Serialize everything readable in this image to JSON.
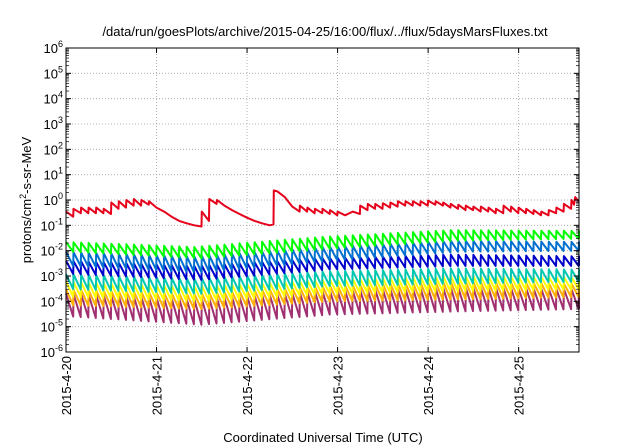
{
  "chart_data": {
    "type": "line",
    "title": "/data/run/goesPlots/archive/2015-04-25/16:00/flux/../flux/5daysMarsFluxes.txt",
    "xlabel": "Coordinated Universal Time (UTC)",
    "ylabel": {
      "prefix": "protons/cm",
      "superscript": "2",
      "suffix": "-s-sr-MeV"
    },
    "y_scale": "log",
    "ylim_exponents": [
      -6,
      6
    ],
    "y_tick_labels": [
      {
        "base": "10",
        "exp": "-6"
      },
      {
        "base": "10",
        "exp": "-5"
      },
      {
        "base": "10",
        "exp": "-4"
      },
      {
        "base": "10",
        "exp": "-3"
      },
      {
        "base": "10",
        "exp": "-2"
      },
      {
        "base": "10",
        "exp": "-1"
      },
      {
        "base": "10",
        "exp": "0"
      },
      {
        "base": "10",
        "exp": "1"
      },
      {
        "base": "10",
        "exp": "2"
      },
      {
        "base": "10",
        "exp": "3"
      },
      {
        "base": "10",
        "exp": "4"
      },
      {
        "base": "10",
        "exp": "5"
      },
      {
        "base": "10",
        "exp": "6"
      }
    ],
    "xlim": [
      "2015-04-20 00:00",
      "2015-04-25 16:00"
    ],
    "x_tick_labels": [
      "2015-4-20",
      "2015-4-21",
      "2015-4-22",
      "2015-4-23",
      "2015-4-24",
      "2015-4-25"
    ],
    "x_tick_dates": [
      "2015-04-20",
      "2015-04-21",
      "2015-04-22",
      "2015-04-23",
      "2015-04-24",
      "2015-04-25"
    ],
    "grid": true,
    "legend": "none",
    "series_colors": [
      "#e6001a",
      "#00ff00",
      "#0070d0",
      "#0000cc",
      "#00c8b0",
      "#ffff00",
      "#ffb000",
      "#a03070"
    ],
    "series": [
      {
        "color": "#e6001a",
        "points": [
          [
            "2015-04-20 00:00",
            0.35
          ],
          [
            "2015-04-20 01:55",
            0.22
          ],
          [
            "2015-04-20 02:00",
            0.45
          ],
          [
            "2015-04-20 03:55",
            0.3
          ],
          [
            "2015-04-20 04:00",
            0.5
          ],
          [
            "2015-04-20 05:55",
            0.3
          ],
          [
            "2015-04-20 06:00",
            0.5
          ],
          [
            "2015-04-20 07:55",
            0.3
          ],
          [
            "2015-04-20 08:00",
            0.5
          ],
          [
            "2015-04-20 09:55",
            0.3
          ],
          [
            "2015-04-20 10:00",
            0.45
          ],
          [
            "2015-04-20 11:55",
            0.28
          ],
          [
            "2015-04-20 12:00",
            0.8
          ],
          [
            "2015-04-20 13:55",
            0.45
          ],
          [
            "2015-04-20 14:00",
            0.9
          ],
          [
            "2015-04-20 15:55",
            0.5
          ],
          [
            "2015-04-20 16:00",
            1.0
          ],
          [
            "2015-04-20 17:55",
            0.6
          ],
          [
            "2015-04-20 18:00",
            1.1
          ],
          [
            "2015-04-20 19:55",
            0.6
          ],
          [
            "2015-04-20 20:00",
            1.0
          ],
          [
            "2015-04-20 21:55",
            0.65
          ],
          [
            "2015-04-20 22:00",
            0.9
          ],
          [
            "2015-04-21 00:00",
            0.5
          ],
          [
            "2015-04-21 02:00",
            0.35
          ],
          [
            "2015-04-21 04:00",
            0.22
          ],
          [
            "2015-04-21 06:00",
            0.15
          ],
          [
            "2015-04-21 08:00",
            0.12
          ],
          [
            "2015-04-21 10:00",
            0.1
          ],
          [
            "2015-04-21 11:55",
            0.09
          ],
          [
            "2015-04-21 12:00",
            0.35
          ],
          [
            "2015-04-21 13:55",
            0.15
          ],
          [
            "2015-04-21 14:00",
            1.1
          ],
          [
            "2015-04-21 15:55",
            0.7
          ],
          [
            "2015-04-21 16:00",
            1.0
          ],
          [
            "2015-04-21 18:00",
            0.6
          ],
          [
            "2015-04-21 20:00",
            0.4
          ],
          [
            "2015-04-21 22:00",
            0.28
          ],
          [
            "2015-04-22 00:00",
            0.2
          ],
          [
            "2015-04-22 02:00",
            0.15
          ],
          [
            "2015-04-22 04:00",
            0.12
          ],
          [
            "2015-04-22 06:00",
            0.1
          ],
          [
            "2015-04-22 07:00",
            0.11
          ],
          [
            "2015-04-22 07:05",
            2.4
          ],
          [
            "2015-04-22 08:00",
            2.2
          ],
          [
            "2015-04-22 10:00",
            1.3
          ],
          [
            "2015-04-22 12:00",
            0.55
          ],
          [
            "2015-04-22 13:55",
            0.35
          ],
          [
            "2015-04-22 14:00",
            0.6
          ],
          [
            "2015-04-22 15:55",
            0.35
          ],
          [
            "2015-04-22 16:00",
            0.5
          ],
          [
            "2015-04-22 17:55",
            0.3
          ],
          [
            "2015-04-22 18:00",
            0.45
          ],
          [
            "2015-04-22 19:55",
            0.3
          ],
          [
            "2015-04-22 20:00",
            0.45
          ],
          [
            "2015-04-22 21:55",
            0.28
          ],
          [
            "2015-04-22 22:00",
            0.4
          ],
          [
            "2015-04-22 23:55",
            0.25
          ],
          [
            "2015-04-23 00:00",
            0.35
          ],
          [
            "2015-04-23 02:00",
            0.25
          ],
          [
            "2015-04-23 04:00",
            0.35
          ],
          [
            "2015-04-23 05:55",
            0.28
          ],
          [
            "2015-04-23 06:00",
            0.6
          ],
          [
            "2015-04-23 07:55",
            0.4
          ],
          [
            "2015-04-23 08:00",
            0.7
          ],
          [
            "2015-04-23 09:55",
            0.45
          ],
          [
            "2015-04-23 10:00",
            0.7
          ],
          [
            "2015-04-23 11:55",
            0.45
          ],
          [
            "2015-04-23 12:00",
            0.75
          ],
          [
            "2015-04-23 13:55",
            0.5
          ],
          [
            "2015-04-23 14:00",
            0.8
          ],
          [
            "2015-04-23 15:55",
            0.55
          ],
          [
            "2015-04-23 16:00",
            0.9
          ],
          [
            "2015-04-23 17:55",
            0.6
          ],
          [
            "2015-04-23 18:00",
            0.9
          ],
          [
            "2015-04-23 19:55",
            0.6
          ],
          [
            "2015-04-23 20:00",
            0.9
          ],
          [
            "2015-04-23 21:55",
            0.6
          ],
          [
            "2015-04-23 22:00",
            0.9
          ],
          [
            "2015-04-23 23:55",
            0.6
          ],
          [
            "2015-04-24 00:00",
            0.95
          ],
          [
            "2015-04-24 01:55",
            0.65
          ],
          [
            "2015-04-24 02:00",
            0.9
          ],
          [
            "2015-04-24 03:55",
            0.6
          ],
          [
            "2015-04-24 04:00",
            0.8
          ],
          [
            "2015-04-24 05:55",
            0.5
          ],
          [
            "2015-04-24 06:00",
            0.7
          ],
          [
            "2015-04-24 07:55",
            0.45
          ],
          [
            "2015-04-24 08:00",
            0.65
          ],
          [
            "2015-04-24 09:55",
            0.4
          ],
          [
            "2015-04-24 10:00",
            0.6
          ],
          [
            "2015-04-24 11:55",
            0.4
          ],
          [
            "2015-04-24 12:00",
            0.55
          ],
          [
            "2015-04-24 13:55",
            0.35
          ],
          [
            "2015-04-24 14:00",
            0.55
          ],
          [
            "2015-04-24 15:55",
            0.35
          ],
          [
            "2015-04-24 16:00",
            0.5
          ],
          [
            "2015-04-24 17:55",
            0.3
          ],
          [
            "2015-04-24 18:00",
            0.45
          ],
          [
            "2015-04-24 19:55",
            0.3
          ],
          [
            "2015-04-24 20:00",
            0.6
          ],
          [
            "2015-04-24 21:55",
            0.35
          ],
          [
            "2015-04-24 22:00",
            0.55
          ],
          [
            "2015-04-24 23:55",
            0.3
          ],
          [
            "2015-04-25 00:00",
            0.5
          ],
          [
            "2015-04-25 01:55",
            0.3
          ],
          [
            "2015-04-25 02:00",
            0.45
          ],
          [
            "2015-04-25 03:55",
            0.28
          ],
          [
            "2015-04-25 04:00",
            0.4
          ],
          [
            "2015-04-25 05:55",
            0.25
          ],
          [
            "2015-04-25 06:00",
            0.35
          ],
          [
            "2015-04-25 07:55",
            0.25
          ],
          [
            "2015-04-25 08:00",
            0.4
          ],
          [
            "2015-04-25 09:55",
            0.3
          ],
          [
            "2015-04-25 10:00",
            0.5
          ],
          [
            "2015-04-25 11:55",
            0.35
          ],
          [
            "2015-04-25 12:00",
            0.7
          ],
          [
            "2015-04-25 13:55",
            0.45
          ],
          [
            "2015-04-25 14:00",
            1.0
          ],
          [
            "2015-04-25 14:40",
            0.65
          ],
          [
            "2015-04-25 15:00",
            1.3
          ],
          [
            "2015-04-25 16:00",
            0.85
          ]
        ]
      },
      {
        "color": "#00ff00",
        "sawtooth": {
          "period_hours": 2,
          "peak": [
            0.022,
            0.014,
            0.035,
            0.065,
            0.06
          ],
          "trough": [
            0.009,
            0.005,
            0.012,
            0.025,
            0.03
          ]
        }
      },
      {
        "color": "#0070d0",
        "sawtooth": {
          "period_hours": 2,
          "peak": [
            0.009,
            0.006,
            0.014,
            0.025,
            0.022
          ],
          "trough": [
            0.0025,
            0.0014,
            0.004,
            0.009,
            0.01
          ]
        }
      },
      {
        "color": "#0000cc",
        "sawtooth": {
          "period_hours": 2,
          "peak": [
            0.004,
            0.0025,
            0.005,
            0.007,
            0.006
          ],
          "trough": [
            0.0012,
            0.0007,
            0.0018,
            0.0025,
            0.0025
          ]
        }
      },
      {
        "color": "#00c8b0",
        "sawtooth": {
          "period_hours": 2,
          "peak": [
            0.0012,
            0.0008,
            0.0015,
            0.002,
            0.0018
          ],
          "trough": [
            0.0003,
            0.0002,
            0.0004,
            0.0005,
            0.0006
          ]
        }
      },
      {
        "color": "#ffff00",
        "sawtooth": {
          "period_hours": 2,
          "peak": [
            0.0006,
            0.0004,
            0.0007,
            0.001,
            0.0009
          ],
          "trough": [
            0.00015,
            0.0001,
            0.0002,
            0.00025,
            0.0003
          ]
        }
      },
      {
        "color": "#ffb000",
        "sawtooth": {
          "period_hours": 2,
          "peak": [
            0.0003,
            0.0002,
            0.0004,
            0.0006,
            0.0005
          ],
          "trough": [
            7e-05,
            5e-05,
            0.0001,
            0.00012,
            0.00015
          ]
        }
      },
      {
        "color": "#a03070",
        "sawtooth": {
          "period_hours": 2,
          "peak": [
            0.0002,
            0.00012,
            0.00025,
            0.00035,
            0.0003
          ],
          "trough": [
            2.5e-05,
            1.2e-05,
            3e-05,
            4e-05,
            5e-05
          ]
        }
      }
    ]
  }
}
